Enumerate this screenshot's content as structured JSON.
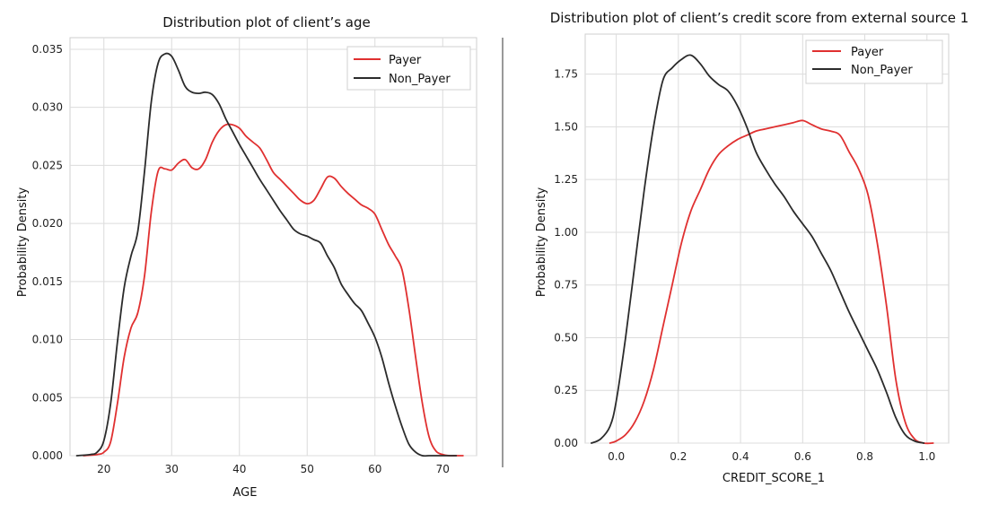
{
  "chart_data": [
    {
      "type": "line",
      "title": "Distribution plot of client’s age",
      "xlabel": "AGE",
      "ylabel": "Probability Density",
      "xlim": [
        15,
        75
      ],
      "ylim": [
        0,
        0.036
      ],
      "x_ticks": [
        20,
        30,
        40,
        50,
        60,
        70
      ],
      "x_tick_labels": [
        "20",
        "30",
        "40",
        "50",
        "60",
        "70"
      ],
      "y_ticks": [
        0,
        0.005,
        0.01,
        0.015,
        0.02,
        0.025,
        0.03,
        0.035
      ],
      "y_tick_labels": [
        "0.000",
        "0.005",
        "0.010",
        "0.015",
        "0.020",
        "0.025",
        "0.030",
        "0.035"
      ],
      "grid": true,
      "legend_position": "top-right",
      "series": [
        {
          "name": "Payer",
          "color": "#e03030",
          "x": [
            17,
            19,
            20,
            21,
            22,
            23,
            24,
            25,
            26,
            27,
            28,
            29,
            30,
            31,
            32,
            33,
            34,
            35,
            36,
            37,
            38,
            39,
            40,
            41,
            42,
            43,
            44,
            45,
            46,
            47,
            48,
            49,
            50,
            51,
            52,
            53,
            54,
            55,
            56,
            57,
            58,
            59,
            60,
            61,
            62,
            63,
            64,
            65,
            66,
            67,
            68,
            69,
            70,
            71,
            72,
            73
          ],
          "y": [
            0.0,
            0.0001,
            0.0003,
            0.0012,
            0.0045,
            0.0085,
            0.011,
            0.0123,
            0.0155,
            0.021,
            0.0245,
            0.0247,
            0.0246,
            0.0252,
            0.0255,
            0.0248,
            0.0247,
            0.0255,
            0.027,
            0.028,
            0.0285,
            0.0285,
            0.0282,
            0.0275,
            0.027,
            0.0265,
            0.0255,
            0.0244,
            0.0238,
            0.0232,
            0.0226,
            0.022,
            0.0217,
            0.022,
            0.023,
            0.024,
            0.0239,
            0.0232,
            0.0226,
            0.0221,
            0.0216,
            0.0213,
            0.0208,
            0.0195,
            0.0182,
            0.0172,
            0.016,
            0.0127,
            0.0085,
            0.0045,
            0.0016,
            0.0004,
            0.0001,
            0.0,
            0.0,
            0.0
          ]
        },
        {
          "name": "Non_Payer",
          "color": "#2b2b2b",
          "x": [
            16,
            18,
            19,
            20,
            21,
            22,
            23,
            24,
            25,
            26,
            27,
            28,
            29,
            30,
            31,
            32,
            33,
            34,
            35,
            36,
            37,
            38,
            39,
            40,
            41,
            42,
            43,
            44,
            45,
            46,
            47,
            48,
            49,
            50,
            51,
            52,
            53,
            54,
            55,
            56,
            57,
            58,
            59,
            60,
            61,
            62,
            63,
            64,
            65,
            66,
            67,
            68,
            69,
            70,
            71,
            72
          ],
          "y": [
            0.0,
            0.0001,
            0.0003,
            0.0013,
            0.0045,
            0.0098,
            0.0145,
            0.0172,
            0.0193,
            0.0245,
            0.0305,
            0.0338,
            0.0346,
            0.0344,
            0.0332,
            0.0318,
            0.0313,
            0.0312,
            0.0313,
            0.0311,
            0.0303,
            0.029,
            0.0279,
            0.0268,
            0.0258,
            0.0248,
            0.0238,
            0.0229,
            0.022,
            0.0211,
            0.0203,
            0.0195,
            0.0191,
            0.0189,
            0.0186,
            0.0183,
            0.0172,
            0.0162,
            0.0148,
            0.0139,
            0.0131,
            0.0125,
            0.0114,
            0.0102,
            0.0085,
            0.0063,
            0.0043,
            0.0025,
            0.001,
            0.0003,
            0.0,
            0.0,
            0.0,
            0.0,
            0.0,
            0.0
          ]
        }
      ]
    },
    {
      "type": "line",
      "title": "Distribution plot of client’s credit score from external source 1",
      "xlabel": "CREDIT_SCORE_1",
      "ylabel": "Probability Density",
      "xlim": [
        -0.1,
        1.07
      ],
      "ylim": [
        0,
        1.94
      ],
      "x_ticks": [
        0.0,
        0.2,
        0.4,
        0.6,
        0.8,
        1.0
      ],
      "x_tick_labels": [
        "0.0",
        "0.2",
        "0.4",
        "0.6",
        "0.8",
        "1.0"
      ],
      "y_ticks": [
        0.0,
        0.25,
        0.5,
        0.75,
        1.0,
        1.25,
        1.5,
        1.75
      ],
      "y_tick_labels": [
        "0.00",
        "0.25",
        "0.50",
        "0.75",
        "1.00",
        "1.25",
        "1.50",
        "1.75"
      ],
      "grid": true,
      "legend_position": "top-right",
      "series": [
        {
          "name": "Payer",
          "color": "#e03030",
          "x": [
            -0.02,
            0.0,
            0.03,
            0.06,
            0.09,
            0.12,
            0.15,
            0.18,
            0.21,
            0.24,
            0.27,
            0.3,
            0.33,
            0.36,
            0.39,
            0.42,
            0.45,
            0.48,
            0.51,
            0.54,
            0.57,
            0.6,
            0.63,
            0.66,
            0.69,
            0.72,
            0.75,
            0.78,
            0.81,
            0.84,
            0.87,
            0.9,
            0.93,
            0.96,
            0.99,
            1.02
          ],
          "y": [
            0.0,
            0.01,
            0.04,
            0.1,
            0.2,
            0.35,
            0.55,
            0.75,
            0.95,
            1.1,
            1.2,
            1.3,
            1.37,
            1.41,
            1.44,
            1.46,
            1.48,
            1.49,
            1.5,
            1.51,
            1.52,
            1.53,
            1.51,
            1.49,
            1.48,
            1.46,
            1.38,
            1.3,
            1.18,
            0.95,
            0.65,
            0.3,
            0.1,
            0.02,
            0.0,
            0.0
          ]
        },
        {
          "name": "Non_Payer",
          "color": "#2b2b2b",
          "x": [
            -0.08,
            -0.05,
            -0.02,
            0.0,
            0.03,
            0.06,
            0.09,
            0.12,
            0.15,
            0.18,
            0.21,
            0.24,
            0.27,
            0.3,
            0.33,
            0.36,
            0.39,
            0.42,
            0.45,
            0.48,
            0.51,
            0.54,
            0.57,
            0.6,
            0.63,
            0.66,
            0.69,
            0.72,
            0.75,
            0.78,
            0.81,
            0.84,
            0.87,
            0.9,
            0.93,
            0.96,
            0.99
          ],
          "y": [
            0.0,
            0.02,
            0.08,
            0.2,
            0.5,
            0.85,
            1.2,
            1.5,
            1.72,
            1.78,
            1.82,
            1.84,
            1.8,
            1.74,
            1.7,
            1.67,
            1.6,
            1.5,
            1.38,
            1.3,
            1.23,
            1.17,
            1.1,
            1.04,
            0.98,
            0.9,
            0.82,
            0.72,
            0.62,
            0.53,
            0.44,
            0.35,
            0.24,
            0.12,
            0.04,
            0.01,
            0.0
          ]
        }
      ]
    }
  ]
}
